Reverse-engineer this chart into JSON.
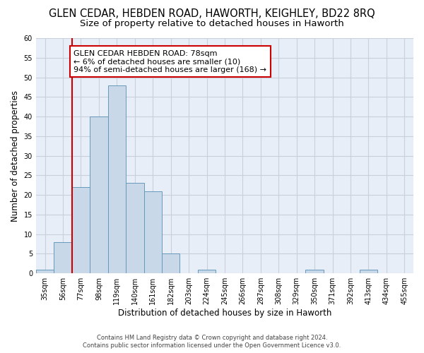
{
  "title": "GLEN CEDAR, HEBDEN ROAD, HAWORTH, KEIGHLEY, BD22 8RQ",
  "subtitle": "Size of property relative to detached houses in Haworth",
  "xlabel": "Distribution of detached houses by size in Haworth",
  "ylabel": "Number of detached properties",
  "footnote1": "Contains HM Land Registry data © Crown copyright and database right 2024.",
  "footnote2": "Contains public sector information licensed under the Open Government Licence v3.0.",
  "bin_labels": [
    "35sqm",
    "56sqm",
    "77sqm",
    "98sqm",
    "119sqm",
    "140sqm",
    "161sqm",
    "182sqm",
    "203sqm",
    "224sqm",
    "245sqm",
    "266sqm",
    "287sqm",
    "308sqm",
    "329sqm",
    "350sqm",
    "371sqm",
    "392sqm",
    "413sqm",
    "434sqm",
    "455sqm"
  ],
  "bar_values": [
    1,
    8,
    22,
    40,
    48,
    23,
    21,
    5,
    0,
    1,
    0,
    0,
    0,
    0,
    0,
    1,
    0,
    0,
    1,
    0,
    0
  ],
  "bar_color": "#c8d8e8",
  "bar_edge_color": "#6699bb",
  "vline_index": 2,
  "vline_color": "#cc0000",
  "annotation_line1": "GLEN CEDAR HEBDEN ROAD: 78sqm",
  "annotation_line2": "← 6% of detached houses are smaller (10)",
  "annotation_line3": "94% of semi-detached houses are larger (168) →",
  "annotation_box_color": "#cc0000",
  "ylim": [
    0,
    60
  ],
  "yticks": [
    0,
    5,
    10,
    15,
    20,
    25,
    30,
    35,
    40,
    45,
    50,
    55,
    60
  ],
  "grid_color": "#c8d0dc",
  "bg_color": "#e8eef8",
  "title_fontsize": 10.5,
  "subtitle_fontsize": 9.5,
  "annot_fontsize": 8,
  "tick_fontsize": 7,
  "ylabel_fontsize": 8.5,
  "xlabel_fontsize": 8.5
}
